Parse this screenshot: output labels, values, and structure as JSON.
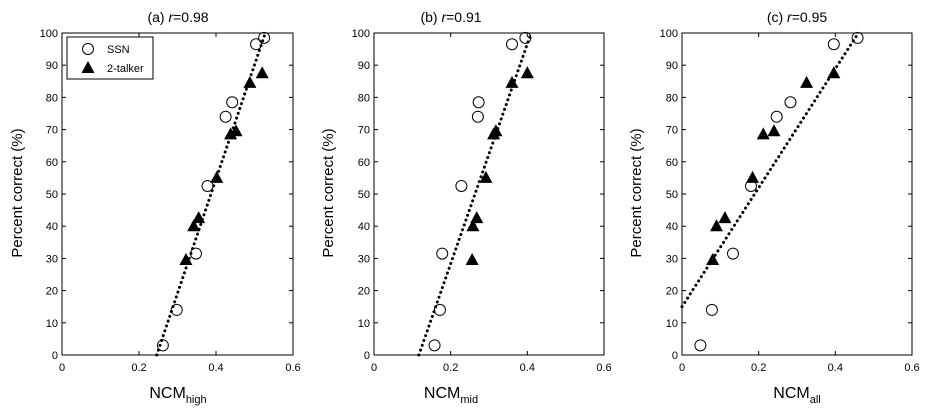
{
  "chart_data": [
    {
      "type": "scatter",
      "panel_label": "(a)",
      "r_label": "r",
      "r_value": "=0.98",
      "xlabel": "NCM",
      "xlabel_sub": "high",
      "ylabel": "Percent correct (%)",
      "xlim": [
        0,
        0.6
      ],
      "ylim": [
        0,
        100
      ],
      "xticks": [
        0,
        0.2,
        0.4,
        0.6
      ],
      "xtick_labels": [
        "0",
        "0.2",
        "0.4",
        "0.6"
      ],
      "yticks": [
        0,
        10,
        20,
        30,
        40,
        50,
        60,
        70,
        80,
        90,
        100
      ],
      "ytick_labels": [
        "0",
        "10",
        "20",
        "30",
        "40",
        "50",
        "60",
        "70",
        "80",
        "90",
        "100"
      ],
      "legend": {
        "position": "top-left",
        "items": [
          "SSN",
          "2-talker"
        ]
      },
      "series": [
        {
          "name": "SSN",
          "marker": "open-circle",
          "x": [
            0.262,
            0.298,
            0.348,
            0.378,
            0.425,
            0.442,
            0.504,
            0.525
          ],
          "y": [
            3,
            14,
            31.5,
            52.5,
            74,
            78.5,
            96.5,
            98.5
          ]
        },
        {
          "name": "2-talker",
          "marker": "filled-triangle",
          "x": [
            0.322,
            0.342,
            0.355,
            0.402,
            0.438,
            0.452,
            0.488,
            0.52
          ],
          "y": [
            29.5,
            40,
            42.5,
            55,
            68.5,
            69.5,
            84.5,
            87.5
          ]
        }
      ],
      "fit_line": {
        "style": "dotted",
        "x": [
          0.246,
          0.528
        ],
        "y": [
          0,
          100
        ]
      }
    },
    {
      "type": "scatter",
      "panel_label": "(b)",
      "r_label": "r",
      "r_value": "=0.91",
      "xlabel": "NCM",
      "xlabel_sub": "mid",
      "ylabel": "Percent correct (%)",
      "xlim": [
        0,
        0.6
      ],
      "ylim": [
        0,
        100
      ],
      "xticks": [
        0,
        0.2,
        0.4,
        0.6
      ],
      "xtick_labels": [
        "0",
        "0.2",
        "0.4",
        "0.6"
      ],
      "yticks": [
        0,
        10,
        20,
        30,
        40,
        50,
        60,
        70,
        80,
        90,
        100
      ],
      "ytick_labels": [
        "0",
        "10",
        "20",
        "30",
        "40",
        "50",
        "60",
        "70",
        "80",
        "90",
        "100"
      ],
      "series": [
        {
          "name": "SSN",
          "marker": "open-circle",
          "x": [
            0.158,
            0.172,
            0.178,
            0.228,
            0.271,
            0.273,
            0.36,
            0.395
          ],
          "y": [
            3,
            14,
            31.5,
            52.5,
            74,
            78.5,
            96.5,
            98.5
          ]
        },
        {
          "name": "2-talker",
          "marker": "filled-triangle",
          "x": [
            0.256,
            0.258,
            0.268,
            0.292,
            0.312,
            0.318,
            0.36,
            0.4
          ],
          "y": [
            29.5,
            40,
            42.5,
            55,
            68.5,
            69.5,
            84.5,
            87.5
          ]
        }
      ],
      "fit_line": {
        "style": "dotted",
        "x": [
          0.117,
          0.41
        ],
        "y": [
          0,
          100
        ]
      }
    },
    {
      "type": "scatter",
      "panel_label": "(c)",
      "r_label": "r",
      "r_value": "=0.95",
      "xlabel": "NCM",
      "xlabel_sub": "all",
      "ylabel": "Percent correct (%)",
      "xlim": [
        0,
        0.6
      ],
      "ylim": [
        0,
        100
      ],
      "xticks": [
        0,
        0.2,
        0.4,
        0.6
      ],
      "xtick_labels": [
        "0",
        "0.2",
        "0.4",
        "0.6"
      ],
      "yticks": [
        0,
        10,
        20,
        30,
        40,
        50,
        60,
        70,
        80,
        90,
        100
      ],
      "ytick_labels": [
        "0",
        "10",
        "20",
        "30",
        "40",
        "50",
        "60",
        "70",
        "80",
        "90",
        "100"
      ],
      "series": [
        {
          "name": "SSN",
          "marker": "open-circle",
          "x": [
            0.048,
            0.078,
            0.133,
            0.18,
            0.247,
            0.283,
            0.396,
            0.458
          ],
          "y": [
            3,
            14,
            31.5,
            52.5,
            74,
            78.5,
            96.5,
            98.5
          ]
        },
        {
          "name": "2-talker",
          "marker": "filled-triangle",
          "x": [
            0.08,
            0.09,
            0.112,
            0.184,
            0.212,
            0.24,
            0.325,
            0.396
          ],
          "y": [
            29.5,
            40,
            42.5,
            55,
            68.5,
            69.5,
            84.5,
            87.5
          ]
        }
      ],
      "fit_line": {
        "style": "dotted",
        "x": [
          0,
          0.46
        ],
        "y": [
          15,
          100
        ]
      }
    }
  ]
}
